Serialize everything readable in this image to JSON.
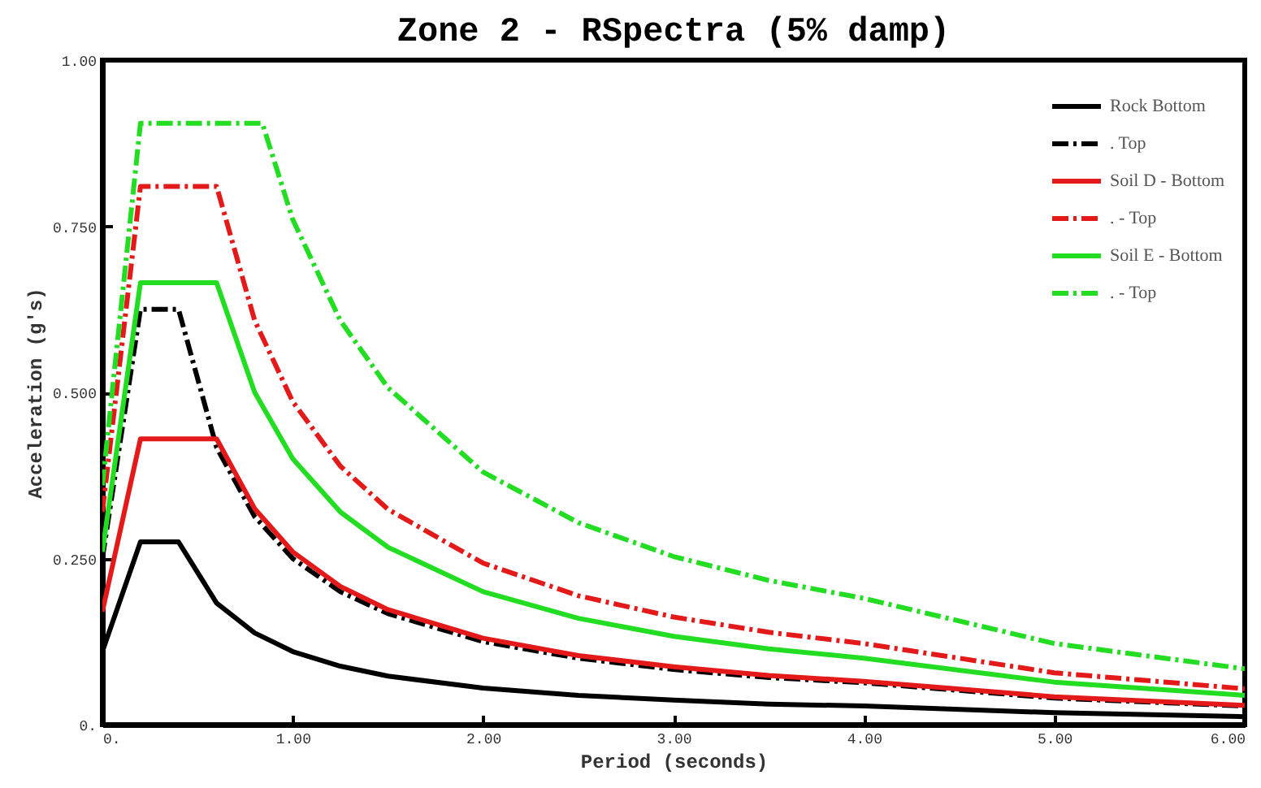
{
  "chart_data": {
    "type": "line",
    "title": "Zone 2 - RSpectra (5% damp)",
    "xlabel": "Period (seconds)",
    "ylabel": "Acceleration (g's)",
    "xlim": [
      0,
      6
    ],
    "ylim": [
      0,
      1
    ],
    "xticks": [
      {
        "value": 0,
        "label": "0."
      },
      {
        "value": 1,
        "label": "1.00"
      },
      {
        "value": 2,
        "label": "2.00"
      },
      {
        "value": 3,
        "label": "3.00"
      },
      {
        "value": 4,
        "label": "4.00"
      },
      {
        "value": 5,
        "label": "5.00"
      },
      {
        "value": 6,
        "label": "6.00"
      }
    ],
    "yticks": [
      {
        "value": 0,
        "label": "0."
      },
      {
        "value": 0.25,
        "label": "0.250"
      },
      {
        "value": 0.5,
        "label": "0.500"
      },
      {
        "value": 0.75,
        "label": "0.750"
      },
      {
        "value": 1,
        "label": "1.00"
      }
    ],
    "grid": false,
    "legend": "top right",
    "marker": "none",
    "series": [
      {
        "name": "Rock Bottom",
        "color": "#000000",
        "line_style": "solid",
        "x": [
          0,
          0.2,
          0.4,
          0.6,
          0.8,
          1,
          1.25,
          1.5,
          2,
          2.5,
          3,
          3.5,
          4,
          5,
          6
        ],
        "values": [
          0.11,
          0.275,
          0.275,
          0.183,
          0.138,
          0.11,
          0.088,
          0.073,
          0.055,
          0.044,
          0.037,
          0.031,
          0.028,
          0.018,
          0.012
        ]
      },
      {
        "name": ". Top",
        "color": "#000000",
        "line_style": "dashed",
        "x": [
          0,
          0.2,
          0.4,
          0.6,
          0.8,
          1,
          1.25,
          1.5,
          2,
          2.5,
          3,
          3.5,
          4,
          5,
          6
        ],
        "values": [
          0.25,
          0.625,
          0.625,
          0.417,
          0.313,
          0.25,
          0.2,
          0.167,
          0.125,
          0.1,
          0.083,
          0.071,
          0.063,
          0.04,
          0.028
        ]
      },
      {
        "name": "Soil D - Bottom",
        "color": "#e41a1a",
        "line_style": "solid",
        "x": [
          0,
          0.2,
          0.6,
          0.8,
          1,
          1.25,
          1.5,
          2,
          2.5,
          3,
          3.5,
          4,
          5,
          6
        ],
        "values": [
          0.17,
          0.43,
          0.43,
          0.325,
          0.26,
          0.208,
          0.173,
          0.13,
          0.104,
          0.087,
          0.074,
          0.065,
          0.042,
          0.029
        ]
      },
      {
        "name": ". - Top",
        "color": "#e41a1a",
        "line_style": "dashed",
        "x": [
          0,
          0.2,
          0.6,
          0.8,
          1,
          1.25,
          1.5,
          2,
          2.5,
          3,
          3.5,
          4,
          5,
          6
        ],
        "values": [
          0.32,
          0.81,
          0.81,
          0.608,
          0.486,
          0.389,
          0.324,
          0.243,
          0.194,
          0.162,
          0.139,
          0.122,
          0.078,
          0.054
        ]
      },
      {
        "name": "Soil E - Bottom",
        "color": "#22dd22",
        "line_style": "solid",
        "x": [
          0,
          0.2,
          0.6,
          0.8,
          1,
          1.25,
          1.5,
          2,
          2.5,
          3,
          3.5,
          4,
          5,
          6
        ],
        "values": [
          0.26,
          0.665,
          0.665,
          0.5,
          0.4,
          0.32,
          0.267,
          0.2,
          0.16,
          0.133,
          0.114,
          0.1,
          0.064,
          0.044
        ]
      },
      {
        "name": ". - Top",
        "color": "#22dd22",
        "line_style": "dashed",
        "x": [
          0,
          0.2,
          0.84,
          1,
          1.25,
          1.5,
          2,
          2.5,
          3,
          3.5,
          4,
          5,
          6
        ],
        "values": [
          0.36,
          0.905,
          0.905,
          0.76,
          0.608,
          0.507,
          0.38,
          0.304,
          0.253,
          0.217,
          0.19,
          0.122,
          0.084
        ]
      }
    ]
  }
}
